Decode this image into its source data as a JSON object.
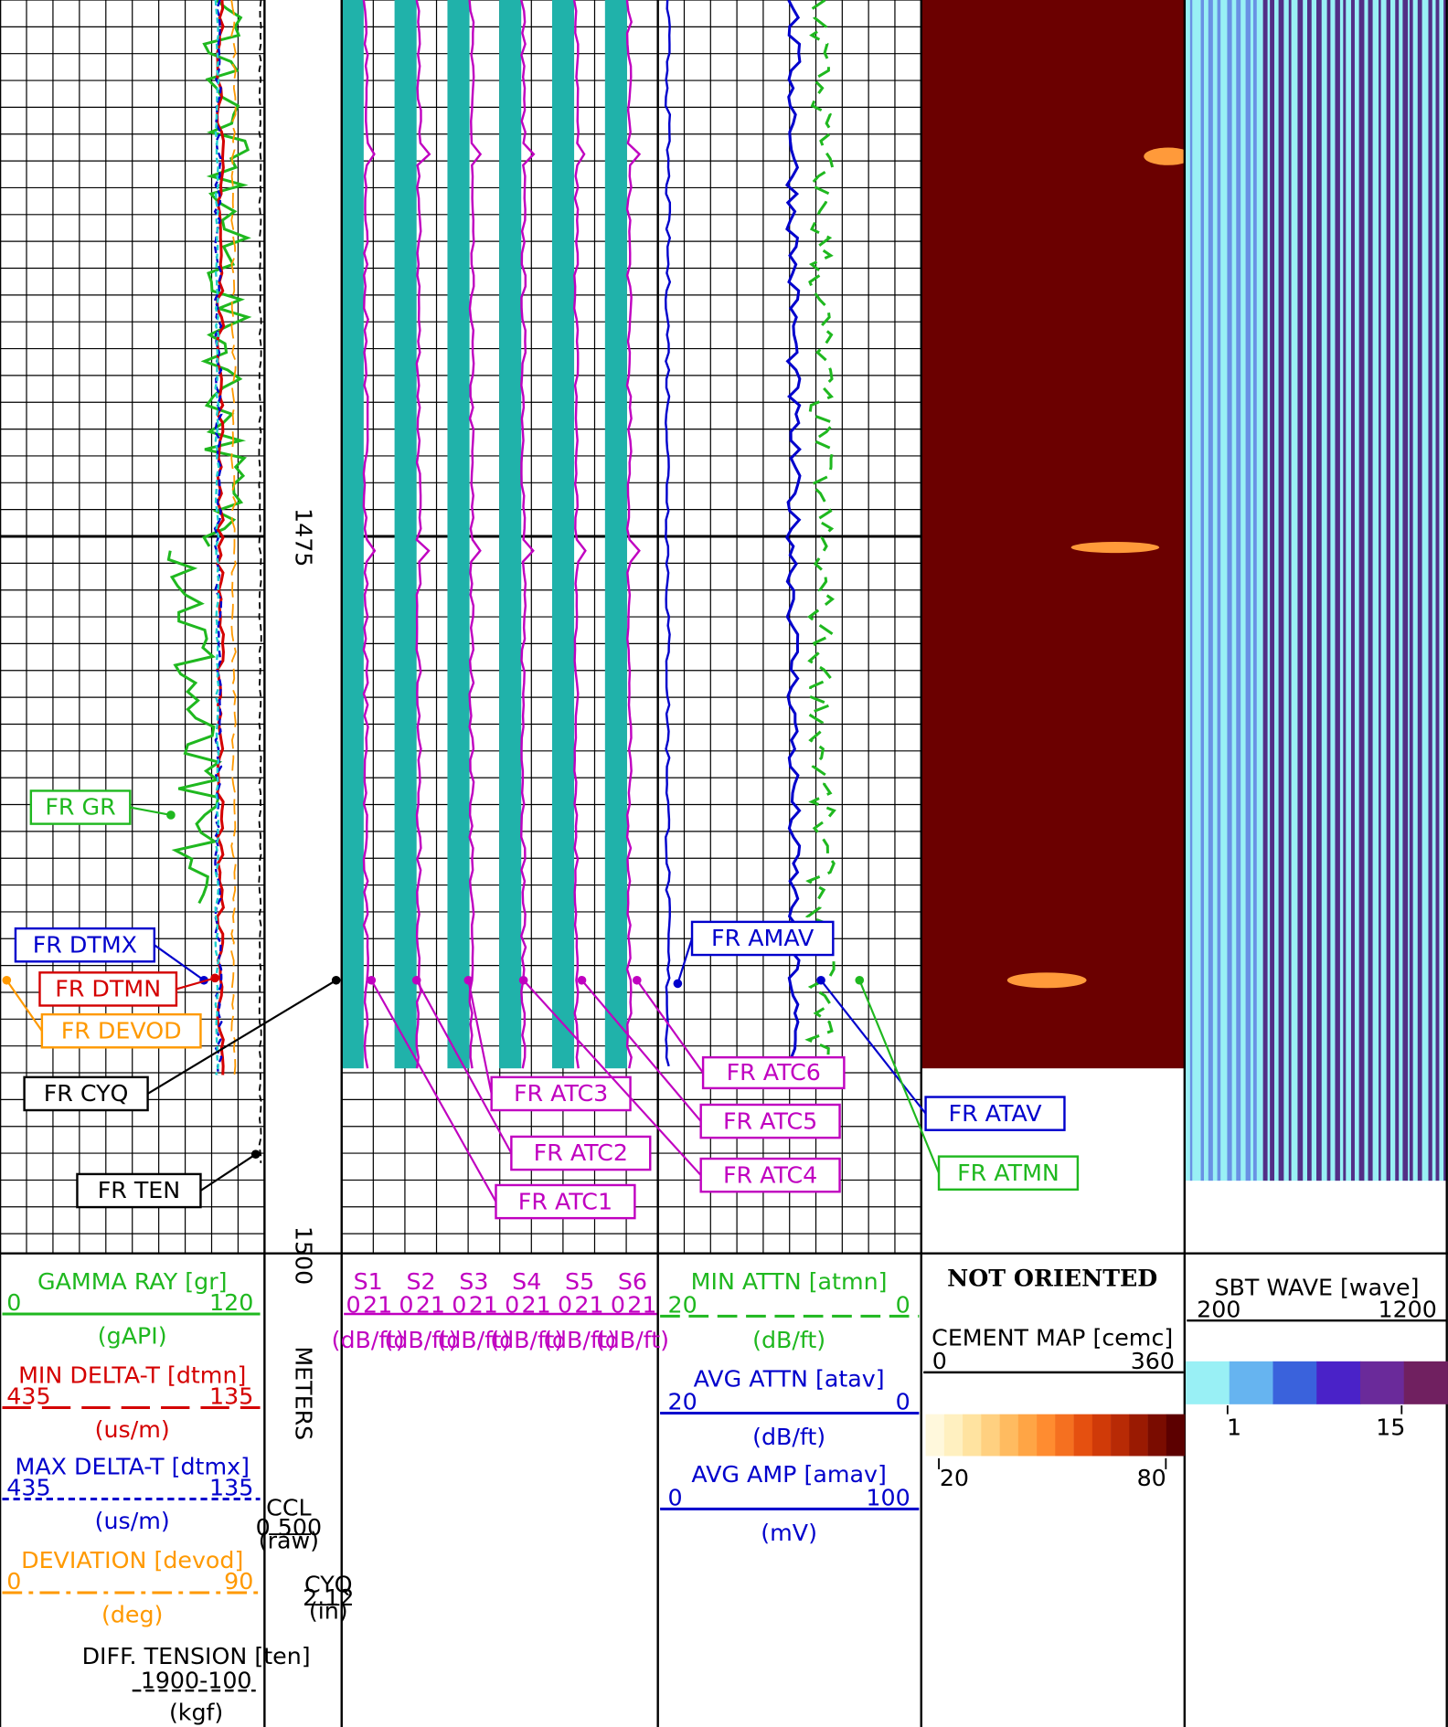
{
  "depth_track": {
    "depth_labels": [
      "1475",
      "1500"
    ],
    "unit": "METERS",
    "ccl": {
      "name": "CCL",
      "scale": "0  500",
      "unit": "(raw)"
    },
    "cyq": {
      "name": "CYQ",
      "scale": "2  12",
      "unit": "(in)"
    }
  },
  "curve_labels": {
    "gr": "FR GR",
    "dtmx": "FR DTMX",
    "dtmn": "FR DTMN",
    "devod": "FR DEVOD",
    "cyq": "FR CYQ",
    "ten": "FR TEN",
    "atc1": "FR ATC1",
    "atc2": "FR ATC2",
    "atc3": "FR ATC3",
    "atc4": "FR ATC4",
    "atc5": "FR ATC5",
    "atc6": "FR ATC6",
    "amav": "FR AMAV",
    "atav": "FR ATAV",
    "atmn": "FR ATMN"
  },
  "track1_header": [
    {
      "name": "GAMMA RAY [gr]",
      "left": "0",
      "right": "120",
      "unit": "(gAPI)"
    },
    {
      "name": "MIN DELTA-T [dtmn]",
      "left": "435",
      "right": "135",
      "unit": "(us/m)"
    },
    {
      "name": "MAX DELTA-T [dtmx]",
      "left": "435",
      "right": "135",
      "unit": "(us/m)"
    },
    {
      "name": "DEVIATION [devod]",
      "left": "0",
      "right": "90",
      "unit": "(deg)"
    },
    {
      "name": "DIFF. TENSION [ten]",
      "scale": "1900-100",
      "unit": "(kgf)"
    }
  ],
  "track2_header": {
    "curves": [
      "S1",
      "S2",
      "S3",
      "S4",
      "S5",
      "S6"
    ],
    "left": "0",
    "right": "21",
    "unit": "(dB/ft)"
  },
  "track3_header": [
    {
      "name": "MIN ATTN [atmn]",
      "left": "20",
      "right": "0",
      "unit": "(dB/ft)"
    },
    {
      "name": "AVG ATTN [atav]",
      "left": "20",
      "right": "0",
      "unit": "(dB/ft)"
    },
    {
      "name": "AVG AMP [amav]",
      "left": "0",
      "right": "100",
      "unit": "(mV)"
    }
  ],
  "cement_header": {
    "note": "NOT ORIENTED",
    "name": "CEMENT MAP [cemc]",
    "left": "0",
    "right": "360",
    "bar_min": "20",
    "bar_max": "80"
  },
  "sbt_header": {
    "name": "SBT WAVE [wave]",
    "left": "200",
    "right": "1200",
    "bar_min": "1",
    "bar_max": "15"
  }
}
